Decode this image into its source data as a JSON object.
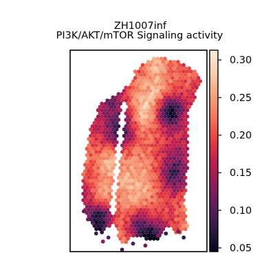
{
  "chart_data": {
    "type": "heatmap",
    "subtype": "spatial-hexbin",
    "sample": "ZH1007inf",
    "title_lines": [
      "ZH1007inf",
      "PI3K/AKT/mTOR Signaling activity"
    ],
    "colormap": "rocket",
    "color_stops": [
      "#03051a",
      "#2e1a47",
      "#5c1e5b",
      "#8e1d5b",
      "#c01e4f",
      "#e83f3f",
      "#f3765a",
      "#f6a47e",
      "#f8cfb0",
      "#faebdd"
    ],
    "vmin": 0.045,
    "vmax": 0.313,
    "colorbar": {
      "ticks": [
        0.05,
        0.1,
        0.15,
        0.2,
        0.25,
        0.3
      ],
      "tick_labels": [
        "0.05",
        "0.10",
        "0.15",
        "0.20",
        "0.25",
        "0.30"
      ]
    },
    "legend_position": "right",
    "grid": false,
    "hotspots": [
      {
        "x": 0.7,
        "y": 0.31,
        "value": 0.07
      },
      {
        "x": 0.77,
        "y": 0.3,
        "value": 0.1
      },
      {
        "x": 0.2,
        "y": 0.93,
        "value": 0.07
      },
      {
        "x": 0.22,
        "y": 0.82,
        "value": 0.11
      },
      {
        "x": 0.6,
        "y": 0.95,
        "value": 0.07
      },
      {
        "x": 0.5,
        "y": 0.87,
        "value": 0.1
      },
      {
        "x": 0.38,
        "y": 0.4,
        "value": 0.11
      },
      {
        "x": 0.75,
        "y": 0.62,
        "value": 0.12
      },
      {
        "x": 0.3,
        "y": 0.22,
        "value": 0.13
      },
      {
        "x": 0.22,
        "y": 0.72,
        "value": 0.29
      },
      {
        "x": 0.28,
        "y": 0.56,
        "value": 0.27
      },
      {
        "x": 0.62,
        "y": 0.05,
        "value": 0.25
      },
      {
        "x": 0.9,
        "y": 0.12,
        "value": 0.26
      },
      {
        "x": 0.52,
        "y": 0.3,
        "value": 0.24
      }
    ]
  }
}
